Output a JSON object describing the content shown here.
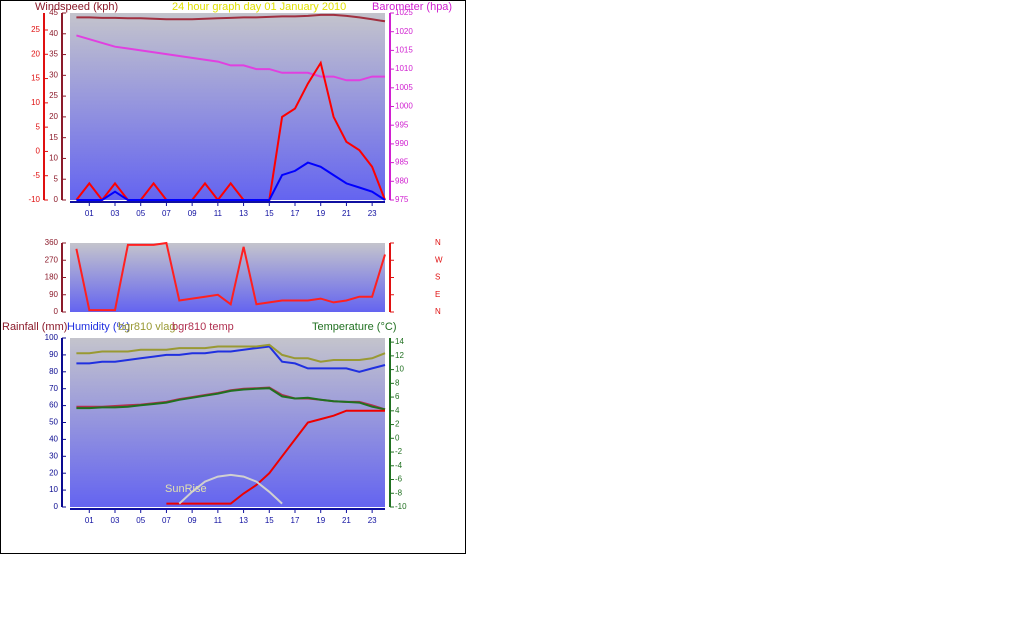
{
  "chart_data": [
    {
      "type": "line",
      "title": "24 hour graph day   01 January 2010",
      "ylabel": "Windspeed (kph)",
      "y2label": "Barometer (hpa)",
      "x": [
        0,
        1,
        2,
        3,
        4,
        5,
        6,
        7,
        8,
        9,
        10,
        11,
        12,
        13,
        14,
        15,
        16,
        17,
        18,
        19,
        20,
        21,
        22,
        23,
        24
      ],
      "xlim": [
        -0.5,
        24
      ],
      "xticks": [
        {
          "value": 1,
          "label": "01"
        },
        {
          "value": 3,
          "label": "03"
        },
        {
          "value": 5,
          "label": "05"
        },
        {
          "value": 7,
          "label": "07"
        },
        {
          "value": 9,
          "label": "09"
        },
        {
          "value": 11,
          "label": "11"
        },
        {
          "value": 13,
          "label": "13"
        },
        {
          "value": 15,
          "label": "15"
        },
        {
          "value": 17,
          "label": "17"
        },
        {
          "value": 19,
          "label": "19"
        },
        {
          "value": 21,
          "label": "21"
        },
        {
          "value": 23,
          "label": "23"
        }
      ],
      "ylim": [
        0,
        45
      ],
      "yticks": [
        0,
        5,
        10,
        15,
        20,
        25,
        30,
        35,
        40,
        45
      ],
      "ycolor": "#8b1a2a",
      "y3lim": [
        -10,
        28.5
      ],
      "y3ticks": [
        -10,
        -5,
        0,
        5,
        10,
        15,
        20,
        25
      ],
      "y3color": "#e01010",
      "y2lim": [
        975,
        1025
      ],
      "y2ticks": [
        975,
        980,
        985,
        990,
        995,
        1000,
        1005,
        1010,
        1015,
        1020,
        1025
      ],
      "y2color": "#d020d0",
      "xcolor": "#1010a0",
      "series": [
        {
          "color": "#a03040",
          "axis": "y3",
          "values": [
            27.6,
            27.6,
            27.5,
            27.5,
            27.4,
            27.4,
            27.3,
            27.2,
            27.2,
            27.2,
            27.3,
            27.4,
            27.5,
            27.6,
            27.6,
            27.7,
            27.8,
            27.8,
            27.9,
            28.1,
            28.1,
            27.9,
            27.6,
            27.2,
            26.8
          ]
        },
        {
          "color": "#e040e0",
          "axis": "y2",
          "values": [
            1019,
            1018,
            1017,
            1016,
            1015.5,
            1015,
            1014.5,
            1014,
            1013.5,
            1013,
            1012.5,
            1012,
            1011,
            1011,
            1010,
            1010,
            1009,
            1009,
            1009,
            1008,
            1008,
            1007,
            1007,
            1008,
            1008
          ]
        },
        {
          "color": "#ff0000",
          "values": [
            0,
            4,
            0,
            4,
            0,
            0,
            4,
            0,
            0,
            0,
            4,
            0,
            4,
            0,
            0,
            0,
            20,
            22,
            28,
            33,
            20,
            14,
            12,
            8,
            0
          ]
        },
        {
          "color": "#0000ff",
          "values": [
            0,
            0,
            0,
            2,
            0,
            0,
            0,
            0,
            0,
            0,
            0,
            0,
            0,
            0,
            0,
            0,
            6,
            7,
            9,
            8,
            6,
            4,
            3,
            2,
            0
          ]
        }
      ]
    },
    {
      "type": "line",
      "x": [
        0,
        1,
        2,
        3,
        4,
        5,
        6,
        7,
        8,
        9,
        10,
        11,
        12,
        13,
        14,
        15,
        16,
        17,
        18,
        19,
        20,
        21,
        22,
        23,
        24
      ],
      "xlim": [
        -0.5,
        24
      ],
      "ylim": [
        0,
        360
      ],
      "yticks": [
        0,
        90,
        180,
        270,
        360
      ],
      "ycolor": "#8b1a2a",
      "y2lim": [
        0,
        360
      ],
      "y2ticks": [
        {
          "value": 360,
          "label": "N"
        },
        {
          "value": 270,
          "label": "W"
        },
        {
          "value": 180,
          "label": "S"
        },
        {
          "value": 90,
          "label": "E"
        },
        {
          "value": 0,
          "label": "N"
        }
      ],
      "y2color": "#e01010",
      "series": [
        {
          "color": "#ff2020",
          "values": [
            330,
            10,
            10,
            10,
            350,
            350,
            350,
            360,
            60,
            70,
            80,
            90,
            40,
            340,
            40,
            50,
            60,
            60,
            60,
            70,
            50,
            60,
            80,
            80,
            300
          ]
        }
      ]
    },
    {
      "type": "line",
      "ylabel": "Rainfall (mm)",
      "annotation": "SunRise",
      "x": [
        0,
        1,
        2,
        3,
        4,
        5,
        6,
        7,
        8,
        9,
        10,
        11,
        12,
        13,
        14,
        15,
        16,
        17,
        18,
        19,
        20,
        21,
        22,
        23,
        24
      ],
      "xlim": [
        -0.5,
        24
      ],
      "xticks": [
        {
          "value": 1,
          "label": "01"
        },
        {
          "value": 3,
          "label": "03"
        },
        {
          "value": 5,
          "label": "05"
        },
        {
          "value": 7,
          "label": "07"
        },
        {
          "value": 9,
          "label": "09"
        },
        {
          "value": 11,
          "label": "11"
        },
        {
          "value": 13,
          "label": "13"
        },
        {
          "value": 15,
          "label": "15"
        },
        {
          "value": 17,
          "label": "17"
        },
        {
          "value": 19,
          "label": "19"
        },
        {
          "value": 21,
          "label": "21"
        },
        {
          "value": 23,
          "label": "23"
        }
      ],
      "xcolor": "#1010a0",
      "ylim": [
        0,
        100
      ],
      "yticks": [
        0,
        10,
        20,
        30,
        40,
        50,
        60,
        70,
        80,
        90,
        100
      ],
      "ycolor": "#0a0a90",
      "y2lim": [
        -10,
        14.6
      ],
      "y2ticks": [
        -10,
        -8,
        -6,
        -4,
        -2,
        0,
        2,
        4,
        6,
        8,
        10,
        12,
        14
      ],
      "y2color": "#207020",
      "series": [
        {
          "name": "Humidity (%)",
          "color": "#2030e0",
          "values": [
            85,
            85,
            86,
            86,
            87,
            88,
            89,
            90,
            90,
            91,
            91,
            92,
            92,
            93,
            94,
            95,
            86,
            85,
            82,
            82,
            82,
            82,
            80,
            82,
            84
          ]
        },
        {
          "name": "bgr810 vlag",
          "color": "#999933",
          "values": [
            91,
            91,
            92,
            92,
            92,
            93,
            93,
            93,
            94,
            94,
            94,
            95,
            95,
            95,
            95,
            96,
            90,
            88,
            88,
            86,
            87,
            87,
            87,
            88,
            91
          ]
        },
        {
          "name": "bgr810 temp",
          "color": "#b03050",
          "axis": "y2",
          "values": [
            4.6,
            4.6,
            4.6,
            4.7,
            4.8,
            4.9,
            5.1,
            5.3,
            5.7,
            6.0,
            6.3,
            6.6,
            7.0,
            7.2,
            7.3,
            7.4,
            6.3,
            5.8,
            5.8,
            5.6,
            5.4,
            5.3,
            5.3,
            4.8,
            4.2
          ]
        },
        {
          "name": "Temperature (°C)",
          "color": "#207020",
          "axis": "y2",
          "values": [
            4.4,
            4.4,
            4.5,
            4.5,
            4.6,
            4.8,
            5.0,
            5.2,
            5.6,
            5.9,
            6.2,
            6.5,
            6.9,
            7.1,
            7.2,
            7.3,
            6.1,
            5.8,
            5.9,
            5.6,
            5.4,
            5.3,
            5.2,
            4.6,
            4.2
          ]
        },
        {
          "color": "#ee0000",
          "values": [
            null,
            null,
            null,
            null,
            null,
            null,
            null,
            2,
            2,
            2,
            2,
            2,
            2,
            8,
            13,
            20,
            30,
            40,
            50,
            52,
            54,
            57,
            57,
            57,
            57
          ]
        },
        {
          "color": "#d0d0d0",
          "values": [
            null,
            null,
            null,
            null,
            null,
            null,
            null,
            null,
            2,
            9,
            15,
            18,
            19,
            18,
            15,
            9,
            2,
            null,
            null,
            null,
            null,
            null,
            null,
            null,
            null
          ]
        }
      ]
    }
  ]
}
